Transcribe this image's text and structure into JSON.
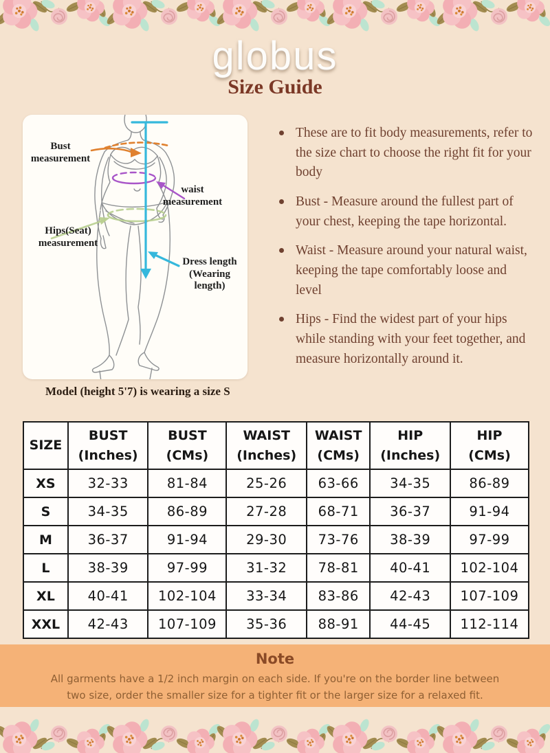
{
  "brand": {
    "logo": "globus"
  },
  "page": {
    "title": "Size Guide"
  },
  "colors": {
    "page_bg": "#f5e3cf",
    "card_bg": "#fffdf8",
    "note_bg": "#f5b277",
    "logo_color": "#fdfcfa",
    "title_color": "#7b3826",
    "text_brown": "#6f4130",
    "note_title": "#8a4a26",
    "note_text": "#8f5f33",
    "table_ink": "#161616",
    "figure_line": "#8e9194",
    "bust_arrow": "#e0812f",
    "waist_arrow": "#a855c8",
    "hips_arrow": "#b9cf90",
    "length_arrow": "#35b8dc"
  },
  "diagram": {
    "labels": {
      "bust": [
        "Bust",
        "measurement"
      ],
      "waist": [
        "waist",
        "measurement"
      ],
      "hips": [
        "Hips(Seat)",
        "measurement"
      ],
      "dress": [
        "Dress length",
        "(Wearing length)"
      ]
    },
    "caption": "Model (height 5'7) is wearing a size S"
  },
  "instructions": {
    "items": [
      "These are to fit body measurements, refer to the size chart to choose the right fit for your body",
      "Bust - Measure around the fullest part of your chest, keeping the tape horizontal.",
      "Waist - Measure around your natural waist, keeping the tape comfortably loose and level",
      "Hips - Find the widest part of your hips while standing with your feet together, and measure horizontally around it."
    ]
  },
  "table": {
    "headers": [
      [
        "SIZE",
        ""
      ],
      [
        "BUST",
        "(Inches)"
      ],
      [
        "BUST",
        "(CMs)"
      ],
      [
        "WAIST",
        "(Inches)"
      ],
      [
        "WAIST",
        "(CMs)"
      ],
      [
        "HIP",
        "(Inches)"
      ],
      [
        "HIP",
        "(CMs)"
      ]
    ],
    "rows": [
      [
        "XS",
        "32-33",
        "81-84",
        "25-26",
        "63-66",
        "34-35",
        "86-89"
      ],
      [
        "S",
        "34-35",
        "86-89",
        "27-28",
        "68-71",
        "36-37",
        "91-94"
      ],
      [
        "M",
        "36-37",
        "91-94",
        "29-30",
        "73-76",
        "38-39",
        "97-99"
      ],
      [
        "L",
        "38-39",
        "97-99",
        "31-32",
        "78-81",
        "40-41",
        "102-104"
      ],
      [
        "XL",
        "40-41",
        "102-104",
        "33-34",
        "83-86",
        "42-43",
        "107-109"
      ],
      [
        "XXL",
        "42-43",
        "107-109",
        "35-36",
        "88-91",
        "44-45",
        "112-114"
      ]
    ]
  },
  "note": {
    "title": "Note",
    "text": "All garments have a 1/2 inch margin on each side. If you're on the border line between two size, order the smaller size for a tighter fit or the larger size for a relaxed fit."
  }
}
